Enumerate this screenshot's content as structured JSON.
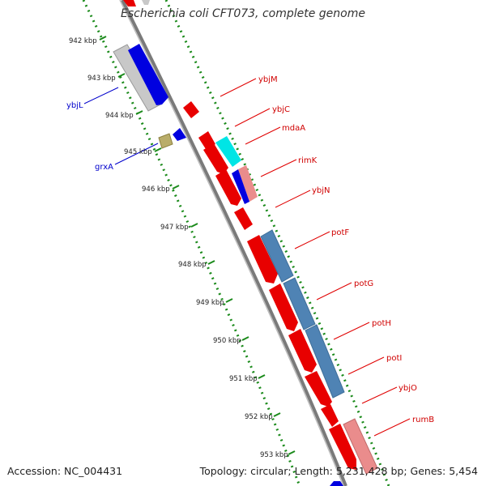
{
  "title": "Escherichia coli CFT073, complete genome",
  "footer": {
    "accession": "Accession: NC_004431",
    "stats": "Topology: circular; Length: 5,231,428 bp; Genes: 5,454"
  },
  "colors": {
    "backbone": "#808080",
    "gc_ticks": "#1a8a1a",
    "forward_gene": "#e80000",
    "reverse_gene": "#0000e0",
    "steel_gene": "#4f83b4",
    "cyan_gene": "#00e5e5",
    "pink_gene": "#ea8c8c",
    "grey_gene": "#c8c8c8",
    "olive_gene": "#b9ad6a",
    "label_red": "#d00000",
    "label_blue": "#0000cc"
  },
  "kbp_labels": [
    "942 kbp",
    "943 kbp",
    "944 kbp",
    "945 kbp",
    "946 kbp",
    "947 kbp",
    "948 kbp",
    "949 kbp",
    "950 kbp",
    "951 kbp",
    "952 kbp",
    "953 kbp"
  ],
  "gene_labels_right": [
    "ybjM",
    "ybjC",
    "mdaA",
    "rimK",
    "ybjN",
    "potF",
    "potG",
    "potH",
    "potI",
    "ybjO",
    "rumB"
  ],
  "gene_labels_left": [
    "ybjL",
    "grxA"
  ]
}
